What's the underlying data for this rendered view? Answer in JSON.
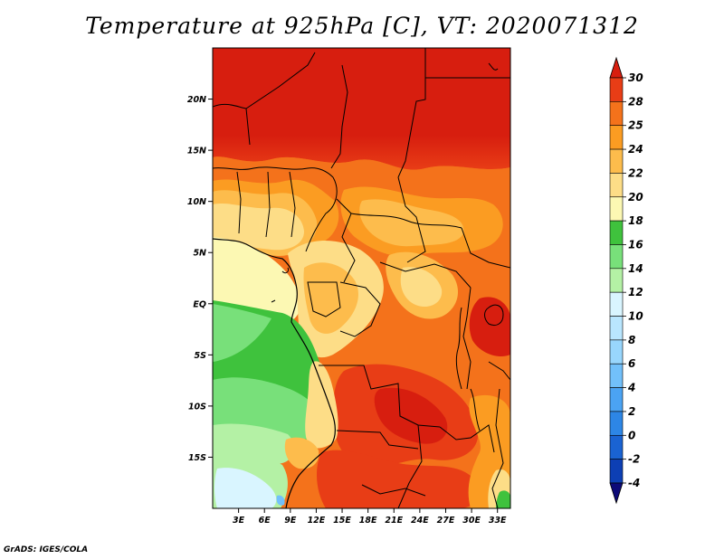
{
  "title": "Temperature at 925hPa [C], VT: 2020071312",
  "credit": "GrADS: IGES/COLA",
  "chart_data": {
    "type": "heatmap",
    "title": "Temperature at 925hPa [C], VT: 2020071312",
    "variable": "Temperature at 925hPa",
    "units": "C",
    "valid_time": "2020071312",
    "x_axis": {
      "ticks": [
        {
          "value": 3,
          "label": "3E"
        },
        {
          "value": 6,
          "label": "6E"
        },
        {
          "value": 9,
          "label": "9E"
        },
        {
          "value": 12,
          "label": "12E"
        },
        {
          "value": 15,
          "label": "15E"
        },
        {
          "value": 18,
          "label": "18E"
        },
        {
          "value": 21,
          "label": "21E"
        },
        {
          "value": 24,
          "label": "24E"
        },
        {
          "value": 27,
          "label": "27E"
        },
        {
          "value": 30,
          "label": "30E"
        },
        {
          "value": 33,
          "label": "33E"
        }
      ],
      "range": [
        0,
        34.5
      ]
    },
    "y_axis": {
      "ticks": [
        {
          "value": 20,
          "label": "20N"
        },
        {
          "value": 15,
          "label": "15N"
        },
        {
          "value": 10,
          "label": "10N"
        },
        {
          "value": 5,
          "label": "5N"
        },
        {
          "value": 0,
          "label": "EQ"
        },
        {
          "value": -5,
          "label": "5S"
        },
        {
          "value": -10,
          "label": "10S"
        },
        {
          "value": -15,
          "label": "15S"
        }
      ],
      "range": [
        -20,
        25
      ]
    },
    "colorbar": {
      "levels": [
        "-4",
        "-2",
        "0",
        "2",
        "4",
        "6",
        "8",
        "10",
        "12",
        "14",
        "16",
        "18",
        "20",
        "22",
        "24",
        "25",
        "28",
        "30"
      ],
      "colors": [
        "#0d0a78",
        "#0d3fb4",
        "#1a63d2",
        "#2d86e6",
        "#4ba3f3",
        "#72c0fa",
        "#98d6fd",
        "#b9e6fe",
        "#d9f5ff",
        "#b4f1a5",
        "#78e07a",
        "#3fc23d",
        "#fcf8b3",
        "#fddd87",
        "#fdbc4c",
        "#fb9c22",
        "#f4721b",
        "#e83d16",
        "#d71e0f"
      ]
    }
  }
}
